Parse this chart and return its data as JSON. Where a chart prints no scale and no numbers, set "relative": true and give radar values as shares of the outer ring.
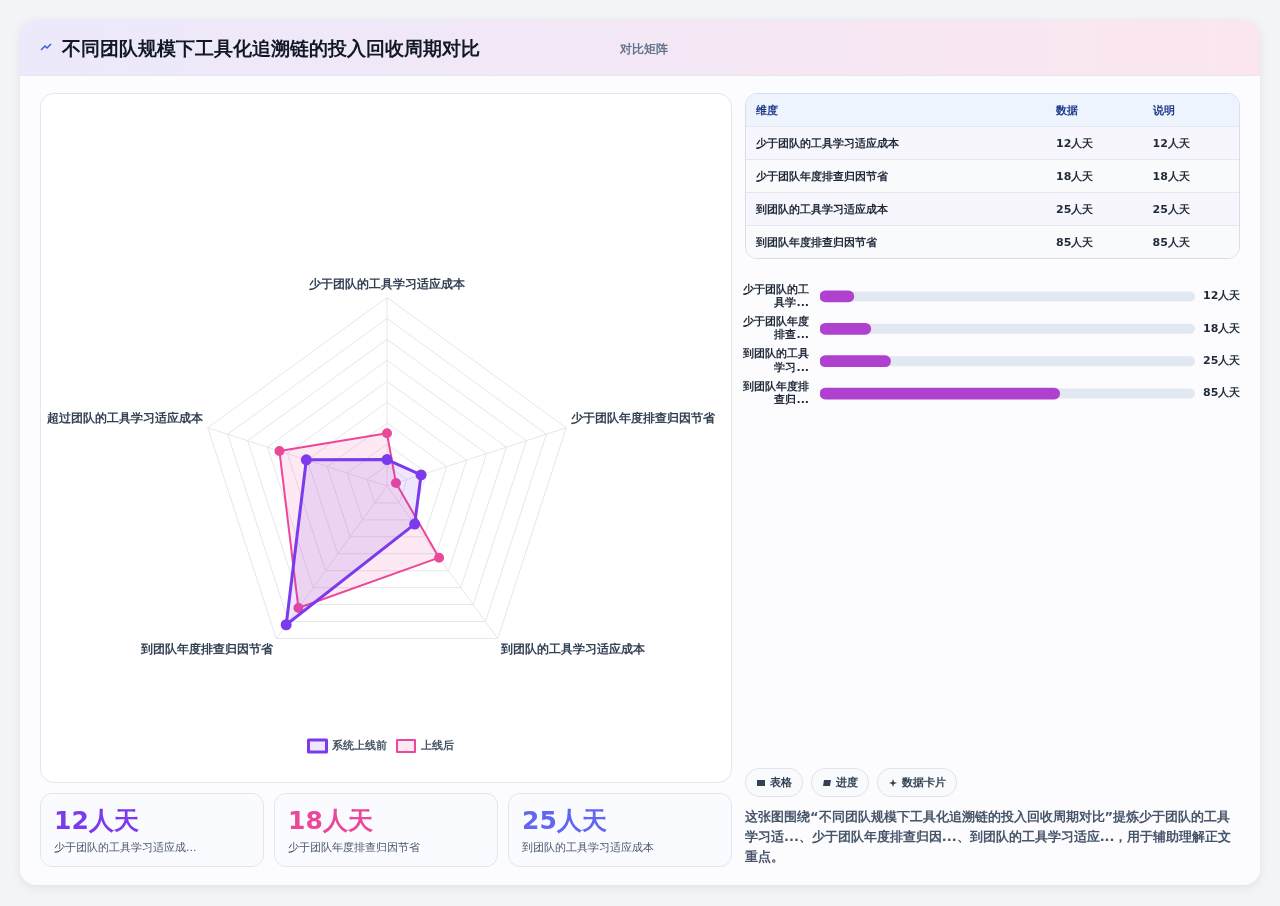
{
  "chart_data": [
    {
      "type": "radar",
      "title": "不同团队规模下工具化追溯链的投入回收周期对比",
      "subtitle": "对比矩阵",
      "relative": true,
      "categories": [
        "少于团队的工具学习适应成本",
        "少于团队年度排查归因节省",
        "到团队的工具学习适应成本",
        "到团队年度排查归因节省",
        "超过团队的工具学习适应成本"
      ],
      "series": [
        {
          "name": "系统上线前",
          "color": "#7c3aed",
          "values": [
            0.14,
            0.19,
            0.25,
            0.91,
            0.45
          ]
        },
        {
          "name": "上线后",
          "color": "#ec4899",
          "values": [
            0.28,
            0.05,
            0.47,
            0.8,
            0.6
          ]
        }
      ],
      "legend": "bottom",
      "marker": "circle",
      "grid": true,
      "annotations": [
        "表格",
        "进度",
        "数据卡片",
        "这张图围绕“不同团队规模下工具化追溯链的投入回收周期对比”提炼少于团队的工具学习适...、少于团队年度排查归因...、到团队的工具学习适应...，用于辅助理解正文重点。"
      ]
    },
    {
      "type": "other",
      "categories": [
        "少于团队的工具学习适应成本",
        "少于团队年度排查归因节省",
        "到团队的工具学习适应成本",
        "到团队年度排查归因节省"
      ],
      "value_labels": [
        "12人天",
        "18人天",
        "25人天",
        "85人天"
      ],
      "annotations": [
        "维度",
        "数据",
        "说明"
      ]
    },
    {
      "type": "bar",
      "orientation": "horizontal",
      "categories": [
        "少于团队的工具学...",
        "少于团队年度排查...",
        "到团队的工具学习...",
        "到团队年度排查归..."
      ],
      "values": [
        12,
        18,
        25,
        85
      ],
      "value_labels": [
        "12人天",
        "18人天",
        "25人天",
        "85人天"
      ],
      "color": "#b041d0",
      "xlim": [
        0,
        133
      ],
      "tick_labels": "y",
      "grid": false
    },
    {
      "type": "other",
      "categories": [
        "少于团队的工具学习适应成...",
        "少于团队年度排查归因节省",
        "到团队的工具学习适应成本"
      ],
      "value_labels": [
        "12人天",
        "18人天",
        "25人天"
      ]
    }
  ]
}
